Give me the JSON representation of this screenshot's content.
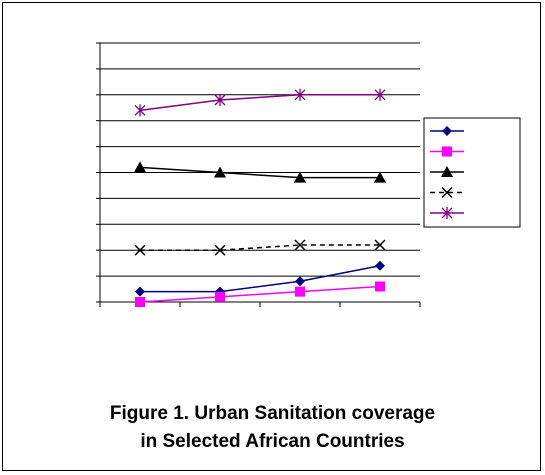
{
  "figure": {
    "caption_line1": "Figure 1. Urban Sanitation coverage",
    "caption_line2": "in Selected African Countries"
  },
  "chart_data": {
    "type": "line",
    "title": "",
    "xlabel": "",
    "ylabel": "",
    "categories": [
      "",
      "",
      "",
      ""
    ],
    "ylim": [
      0,
      10
    ],
    "grid": true,
    "legend_placement": "right",
    "series": [
      {
        "values": [
          0.4,
          0.4,
          0.8,
          1.4
        ],
        "color": "#000080",
        "marker": "diamond",
        "dash": "solid"
      },
      {
        "values": [
          0.0,
          0.2,
          0.4,
          0.6
        ],
        "color": "#ff00ff",
        "marker": "square",
        "dash": "solid"
      },
      {
        "values": [
          5.2,
          5.0,
          4.8,
          4.8
        ],
        "color": "#000000",
        "marker": "triangle",
        "dash": "solid"
      },
      {
        "values": [
          2.0,
          2.0,
          2.2,
          2.2
        ],
        "color": "#000000",
        "marker": "x",
        "dash": "dashed"
      },
      {
        "values": [
          7.4,
          7.8,
          8.0,
          8.0
        ],
        "color": "#800080",
        "marker": "star",
        "dash": "solid"
      }
    ]
  }
}
